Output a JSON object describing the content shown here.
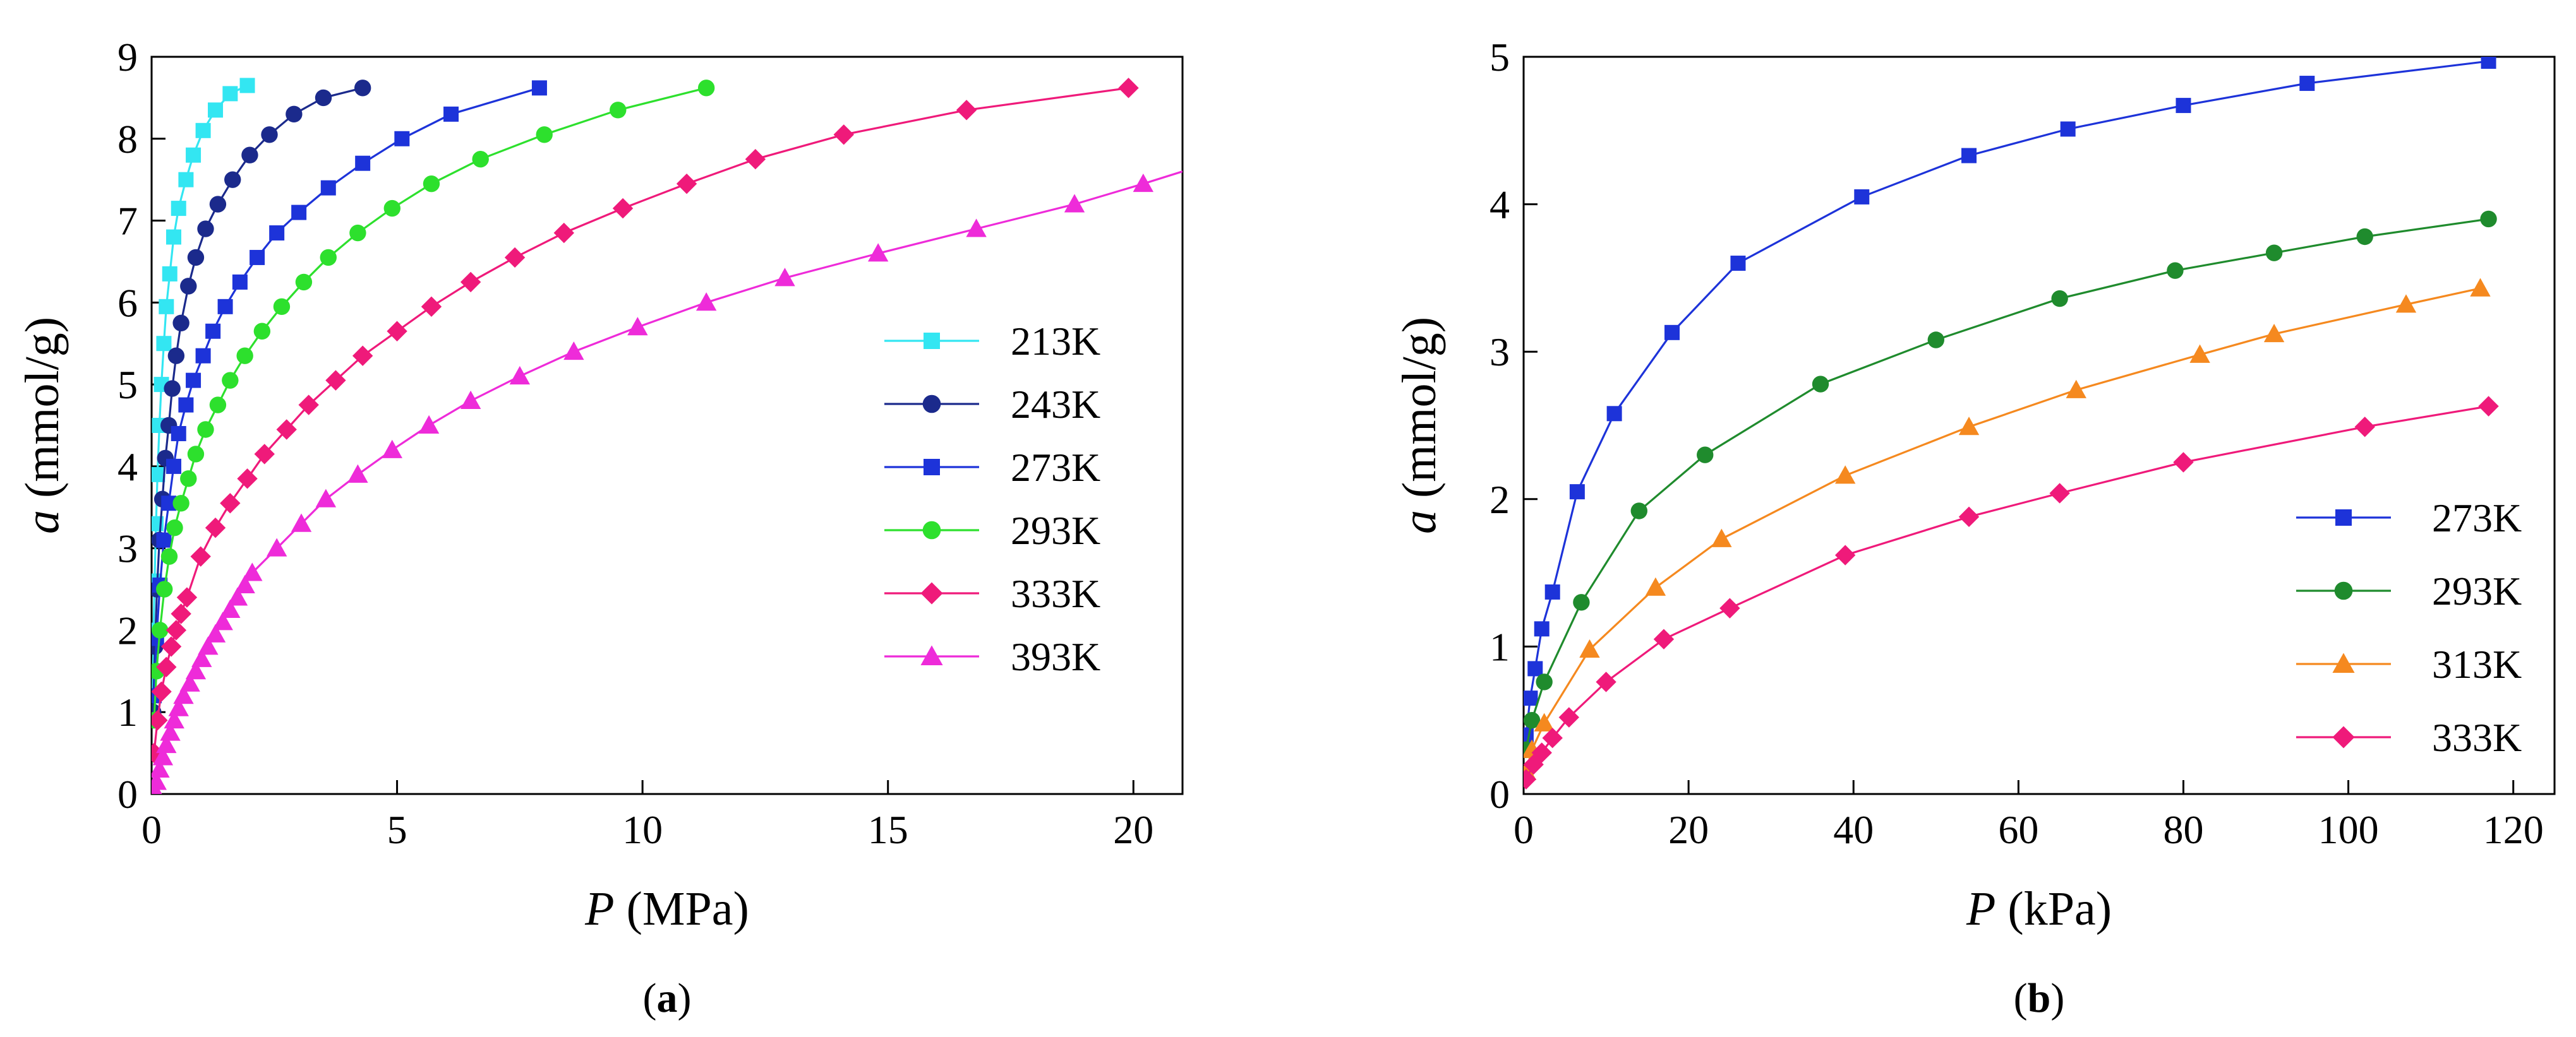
{
  "chart_data": [
    {
      "type": "scatter",
      "panel_label": {
        "open": "(",
        "letter": "a",
        "close": ")"
      },
      "xlabel": {
        "symbol": "P",
        "unit": " (MPa)"
      },
      "ylabel": {
        "symbol": "a",
        "unit": " (mmol/g)"
      },
      "xlim": [
        0,
        21
      ],
      "ylim": [
        0,
        9
      ],
      "xticks": [
        0,
        5,
        10,
        15,
        20
      ],
      "yticks": [
        0,
        1,
        2,
        3,
        4,
        5,
        6,
        7,
        8,
        9
      ],
      "legend_position": "right",
      "series": [
        {
          "name": "213K",
          "color": "#33e6f2",
          "marker": "square",
          "points": [
            [
              0.02,
              1.2
            ],
            [
              0.04,
              2.0
            ],
            [
              0.06,
              2.6
            ],
            [
              0.09,
              3.3
            ],
            [
              0.12,
              3.9
            ],
            [
              0.16,
              4.5
            ],
            [
              0.2,
              5.0
            ],
            [
              0.25,
              5.5
            ],
            [
              0.3,
              5.95
            ],
            [
              0.37,
              6.35
            ],
            [
              0.45,
              6.8
            ],
            [
              0.55,
              7.15
            ],
            [
              0.7,
              7.5
            ],
            [
              0.85,
              7.8
            ],
            [
              1.05,
              8.1
            ],
            [
              1.3,
              8.35
            ],
            [
              1.6,
              8.55
            ],
            [
              1.95,
              8.65
            ]
          ]
        },
        {
          "name": "243K",
          "color": "#1b2a8c",
          "marker": "circle",
          "points": [
            [
              0.03,
              1.0
            ],
            [
              0.07,
              1.8
            ],
            [
              0.11,
              2.5
            ],
            [
              0.16,
              3.1
            ],
            [
              0.22,
              3.6
            ],
            [
              0.28,
              4.1
            ],
            [
              0.35,
              4.5
            ],
            [
              0.42,
              4.95
            ],
            [
              0.5,
              5.35
            ],
            [
              0.6,
              5.75
            ],
            [
              0.75,
              6.2
            ],
            [
              0.9,
              6.55
            ],
            [
              1.1,
              6.9
            ],
            [
              1.35,
              7.2
            ],
            [
              1.65,
              7.5
            ],
            [
              2.0,
              7.8
            ],
            [
              2.4,
              8.05
            ],
            [
              2.9,
              8.3
            ],
            [
              3.5,
              8.5
            ],
            [
              4.3,
              8.62
            ]
          ]
        },
        {
          "name": "273K",
          "color": "#1d33d9",
          "marker": "square",
          "points": [
            [
              0.05,
              1.2
            ],
            [
              0.1,
              1.9
            ],
            [
              0.17,
              2.55
            ],
            [
              0.25,
              3.1
            ],
            [
              0.35,
              3.55
            ],
            [
              0.45,
              4.0
            ],
            [
              0.55,
              4.4
            ],
            [
              0.7,
              4.75
            ],
            [
              0.85,
              5.05
            ],
            [
              1.05,
              5.35
            ],
            [
              1.25,
              5.65
            ],
            [
              1.5,
              5.95
            ],
            [
              1.8,
              6.25
            ],
            [
              2.15,
              6.55
            ],
            [
              2.55,
              6.85
            ],
            [
              3.0,
              7.1
            ],
            [
              3.6,
              7.4
            ],
            [
              4.3,
              7.7
            ],
            [
              5.1,
              8.0
            ],
            [
              6.1,
              8.3
            ],
            [
              7.9,
              8.62
            ]
          ]
        },
        {
          "name": "293K",
          "color": "#2de02d",
          "marker": "circle",
          "points": [
            [
              0.05,
              0.9
            ],
            [
              0.1,
              1.5
            ],
            [
              0.17,
              2.0
            ],
            [
              0.26,
              2.5
            ],
            [
              0.36,
              2.9
            ],
            [
              0.47,
              3.25
            ],
            [
              0.6,
              3.55
            ],
            [
              0.75,
              3.85
            ],
            [
              0.9,
              4.15
            ],
            [
              1.1,
              4.45
            ],
            [
              1.35,
              4.75
            ],
            [
              1.6,
              5.05
            ],
            [
              1.9,
              5.35
            ],
            [
              2.25,
              5.65
            ],
            [
              2.65,
              5.95
            ],
            [
              3.1,
              6.25
            ],
            [
              3.6,
              6.55
            ],
            [
              4.2,
              6.85
            ],
            [
              4.9,
              7.15
            ],
            [
              5.7,
              7.45
            ],
            [
              6.7,
              7.75
            ],
            [
              8.0,
              8.05
            ],
            [
              9.5,
              8.35
            ],
            [
              11.3,
              8.62
            ]
          ]
        },
        {
          "name": "333K",
          "color": "#ef1a7a",
          "marker": "diamond",
          "points": [
            [
              0.05,
              0.5
            ],
            [
              0.12,
              0.9
            ],
            [
              0.2,
              1.25
            ],
            [
              0.3,
              1.55
            ],
            [
              0.4,
              1.8
            ],
            [
              0.5,
              2.0
            ],
            [
              0.6,
              2.2
            ],
            [
              0.72,
              2.4
            ],
            [
              1.0,
              2.9
            ],
            [
              1.3,
              3.25
            ],
            [
              1.6,
              3.55
            ],
            [
              1.95,
              3.85
            ],
            [
              2.3,
              4.15
            ],
            [
              2.75,
              4.45
            ],
            [
              3.2,
              4.75
            ],
            [
              3.75,
              5.05
            ],
            [
              4.3,
              5.35
            ],
            [
              5.0,
              5.65
            ],
            [
              5.7,
              5.95
            ],
            [
              6.5,
              6.25
            ],
            [
              7.4,
              6.55
            ],
            [
              8.4,
              6.85
            ],
            [
              9.6,
              7.15
            ],
            [
              10.9,
              7.45
            ],
            [
              12.3,
              7.75
            ],
            [
              14.1,
              8.05
            ],
            [
              16.6,
              8.35
            ],
            [
              19.9,
              8.62
            ]
          ]
        },
        {
          "name": "393K",
          "color": "#ee2bd9",
          "marker": "triangle",
          "points": [
            [
              0.05,
              0.05
            ],
            [
              0.1,
              0.15
            ],
            [
              0.16,
              0.3
            ],
            [
              0.23,
              0.45
            ],
            [
              0.3,
              0.6
            ],
            [
              0.38,
              0.75
            ],
            [
              0.46,
              0.9
            ],
            [
              0.55,
              1.05
            ],
            [
              0.65,
              1.2
            ],
            [
              0.78,
              1.35
            ],
            [
              0.9,
              1.5
            ],
            [
              1.02,
              1.65
            ],
            [
              1.15,
              1.8
            ],
            [
              1.3,
              1.95
            ],
            [
              1.45,
              2.1
            ],
            [
              1.6,
              2.25
            ],
            [
              1.75,
              2.4
            ],
            [
              1.9,
              2.55
            ],
            [
              2.05,
              2.7
            ],
            [
              2.55,
              3.0
            ],
            [
              3.05,
              3.3
            ],
            [
              3.55,
              3.6
            ],
            [
              4.2,
              3.9
            ],
            [
              4.9,
              4.2
            ],
            [
              5.65,
              4.5
            ],
            [
              6.5,
              4.8
            ],
            [
              7.5,
              5.1
            ],
            [
              8.6,
              5.4
            ],
            [
              9.9,
              5.7
            ],
            [
              11.3,
              6.0
            ],
            [
              12.9,
              6.3
            ],
            [
              14.8,
              6.6
            ],
            [
              16.8,
              6.9
            ],
            [
              18.8,
              7.2
            ],
            [
              20.2,
              7.45
            ]
          ]
        }
      ],
      "fit_extension": {
        "series": "393K",
        "to": [
          21.0,
          7.6
        ]
      }
    },
    {
      "type": "scatter",
      "panel_label": {
        "open": "(",
        "letter": "b",
        "close": ")"
      },
      "xlabel": {
        "symbol": "P",
        "unit": " (kPa)"
      },
      "ylabel": {
        "symbol": "a",
        "unit": " (mmol/g)"
      },
      "xlim": [
        0,
        125
      ],
      "ylim": [
        0,
        5
      ],
      "xticks": [
        0,
        20,
        40,
        60,
        80,
        100,
        120
      ],
      "yticks": [
        0,
        1,
        2,
        3,
        4,
        5
      ],
      "legend_position": "bottom-right",
      "series": [
        {
          "name": "273K",
          "color": "#1d33d9",
          "marker": "square",
          "points": [
            [
              0.3,
              0.4
            ],
            [
              0.8,
              0.65
            ],
            [
              1.4,
              0.85
            ],
            [
              2.2,
              1.12
            ],
            [
              3.5,
              1.37
            ],
            [
              6.5,
              2.05
            ],
            [
              11,
              2.58
            ],
            [
              18,
              3.13
            ],
            [
              26,
              3.6
            ],
            [
              41,
              4.05
            ],
            [
              54,
              4.33
            ],
            [
              66,
              4.51
            ],
            [
              80,
              4.67
            ],
            [
              95,
              4.82
            ],
            [
              117,
              4.97
            ]
          ]
        },
        {
          "name": "293K",
          "color": "#1f8b2d",
          "marker": "circle",
          "points": [
            [
              0.3,
              0.3
            ],
            [
              1.0,
              0.5
            ],
            [
              2.5,
              0.76
            ],
            [
              7,
              1.3
            ],
            [
              14,
              1.92
            ],
            [
              22,
              2.3
            ],
            [
              36,
              2.78
            ],
            [
              50,
              3.08
            ],
            [
              65,
              3.36
            ],
            [
              79,
              3.55
            ],
            [
              91,
              3.67
            ],
            [
              102,
              3.78
            ],
            [
              117,
              3.9
            ]
          ]
        },
        {
          "name": "313K",
          "color": "#f5891f",
          "marker": "triangle",
          "points": [
            [
              0.3,
              0.15
            ],
            [
              1.0,
              0.3
            ],
            [
              2.5,
              0.48
            ],
            [
              8,
              0.98
            ],
            [
              16,
              1.4
            ],
            [
              24,
              1.73
            ],
            [
              39,
              2.16
            ],
            [
              54,
              2.49
            ],
            [
              67,
              2.74
            ],
            [
              82,
              2.98
            ],
            [
              91,
              3.12
            ],
            [
              107,
              3.32
            ],
            [
              116,
              3.43
            ]
          ]
        },
        {
          "name": "333K",
          "color": "#ef1a7a",
          "marker": "diamond",
          "points": [
            [
              0.3,
              0.1
            ],
            [
              1.2,
              0.2
            ],
            [
              2.2,
              0.28
            ],
            [
              3.5,
              0.38
            ],
            [
              5.5,
              0.52
            ],
            [
              10,
              0.76
            ],
            [
              17,
              1.05
            ],
            [
              25,
              1.26
            ],
            [
              39,
              1.62
            ],
            [
              54,
              1.88
            ],
            [
              65,
              2.04
            ],
            [
              80,
              2.25
            ],
            [
              102,
              2.49
            ],
            [
              117,
              2.63
            ]
          ]
        }
      ]
    }
  ]
}
